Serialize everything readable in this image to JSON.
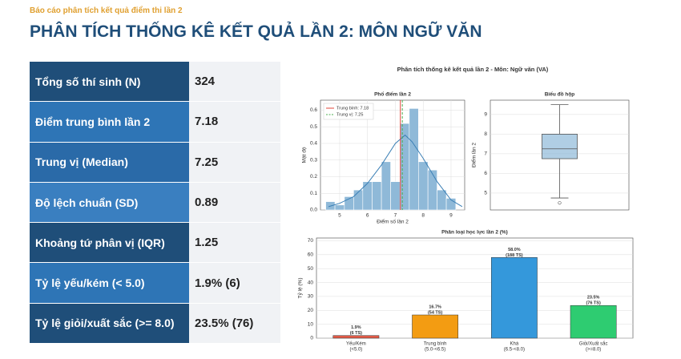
{
  "header": {
    "subtitle": "Báo cáo phân tích kết quả điểm thi lần 2",
    "title": "PHÂN TÍCH THỐNG KÊ KẾT QUẢ LẦN 2: MÔN NGỮ VĂN"
  },
  "table": {
    "rows": [
      [
        "Tổng số thí sinh (N)",
        "324"
      ],
      [
        "Điểm trung bình lần 2",
        "7.18"
      ],
      [
        "Trung vị (Median)",
        "7.25"
      ],
      [
        "Độ lệch chuẩn (SD)",
        "0.89"
      ],
      [
        "Khoảng tứ phân vị (IQR)",
        "1.25"
      ],
      [
        "Tỷ lệ yếu/kém (< 5.0)",
        "1.9% (6)"
      ],
      [
        "Tỷ lệ giỏi/xuất sắc (>= 8.0)",
        "23.5% (76)"
      ]
    ]
  },
  "figure_title": "Phân tích thống kê kết quả lần 2 - Môn: Ngữ văn (VA)",
  "chart_data": [
    {
      "type": "histogram",
      "title": "Phổ điểm lần 2",
      "xlabel": "Điểm số lần 2",
      "ylabel": "Mật độ",
      "bins": [
        4.5,
        4.83,
        5.17,
        5.5,
        5.83,
        6.17,
        6.5,
        6.83,
        7.17,
        7.5,
        7.83,
        8.17,
        8.5,
        8.83,
        9.17
      ],
      "values": [
        0.05,
        0.03,
        0.08,
        0.12,
        0.17,
        0.17,
        0.29,
        0.17,
        0.52,
        0.61,
        0.29,
        0.24,
        0.12,
        0.07
      ],
      "color": "#8fb9d8",
      "kde": {
        "x": [
          4.6,
          5.0,
          5.5,
          6.0,
          6.5,
          7.0,
          7.35,
          7.6,
          8.0,
          8.5,
          9.0,
          9.4
        ],
        "y": [
          0.02,
          0.04,
          0.08,
          0.16,
          0.27,
          0.4,
          0.45,
          0.41,
          0.31,
          0.17,
          0.06,
          0.02
        ],
        "color": "#3a7fb5"
      },
      "lines": [
        {
          "name": "Trung bình: 7.18",
          "value": 7.18,
          "color": "#e0453a",
          "dash": false
        },
        {
          "name": "Trung vị: 7.25",
          "value": 7.25,
          "color": "#4caf50",
          "dash": true
        }
      ],
      "xlim": [
        4.31,
        9.49
      ],
      "ylim": [
        0,
        0.66
      ],
      "xticks": [
        5,
        6,
        7,
        8,
        9
      ],
      "yticks": [
        {
          "value": 0,
          "label": "0.0"
        },
        0.1,
        0.2,
        0.3,
        0.4,
        0.5,
        0.6
      ],
      "grid": true,
      "legend": "upper left"
    },
    {
      "type": "box",
      "title": "Biểu đồ hộp",
      "ylabel": "Điểm lần 2",
      "whisker_low": 4.75,
      "q1": 6.75,
      "median": 7.25,
      "q3": 8.0,
      "whisker_high": 9.5,
      "outliers": [
        4.5
      ],
      "color": "#8fb9d8",
      "ylim": [
        4.14,
        9.73
      ],
      "yticks": [
        5,
        6,
        7,
        8,
        9
      ],
      "grid": true
    },
    {
      "type": "bar",
      "title": "Phân loại học lực lần 2 (%)",
      "ylabel": "Tỷ lệ (%)",
      "categories": [
        [
          "Yếu/Kém",
          "(<5.0)"
        ],
        [
          "Trung bình",
          "(5.0-<6.5)"
        ],
        [
          "Khá",
          "(6.5-<8.0)"
        ],
        [
          "Giỏi/Xuất sắc",
          "(>=8.0)"
        ]
      ],
      "values": [
        1.9,
        16.7,
        58.0,
        23.5
      ],
      "value_labels": [
        [
          "1.9%",
          "(6 TS)"
        ],
        [
          "16.7%",
          "(54 TS)"
        ],
        [
          "58.0%",
          "(188 TS)"
        ],
        [
          "23.5%",
          "(76 TS)"
        ]
      ],
      "colors": [
        "#e05a47",
        "#f39c12",
        "#3498db",
        "#2ecc71"
      ],
      "ylim": [
        0,
        72
      ],
      "yticks": [
        0,
        10,
        20,
        30,
        40,
        50,
        60,
        70
      ],
      "grid": true
    }
  ]
}
